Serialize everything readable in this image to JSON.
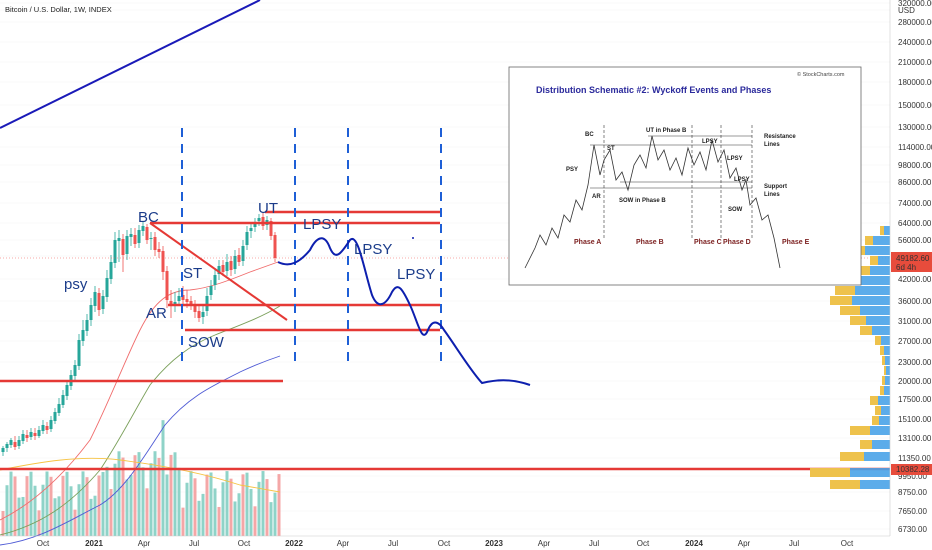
{
  "header": {
    "symbol_title": "Bitcoin / U.S. Dollar, 1W, INDEX"
  },
  "colors": {
    "bull": "#26a69a",
    "bear": "#ef5350",
    "support": "#e53935",
    "wave": "#0d1fae",
    "phase_line": "#1e5fd6",
    "trend_line": "#1a1ab8",
    "ema_red": "#f06c6c",
    "ema_green": "#7ba05b",
    "ema_blue": "#4f5bd5",
    "vp_up": "#f6c343",
    "vp_down": "#4aa3e8",
    "price_badge": "#e74c3c",
    "inset_title": "#2b2a9c",
    "inset_phase": "#7b1e1e"
  },
  "chart_data": {
    "type": "candlestick",
    "y_axis_ticks": [
      "320000.00",
      "USD",
      "280000.00",
      "240000.00",
      "210000.00",
      "180000.00",
      "150000.00",
      "130000.00",
      "114000.00",
      "98000.00",
      "86000.00",
      "74000.00",
      "64000.00",
      "56000.00",
      "49000.00",
      "42000.00",
      "36000.00",
      "31000.00",
      "27000.00",
      "23000.00",
      "20000.00",
      "17500.00",
      "15100.00",
      "13100.00",
      "11350.00",
      "9950.00",
      "8750.00",
      "7650.00",
      "6730.00"
    ],
    "x_axis_ticks": [
      "Oct",
      "2021",
      "Apr",
      "Jul",
      "Oct",
      "2022",
      "Apr",
      "Jul",
      "Oct",
      "2023",
      "Apr",
      "Jul",
      "Oct",
      "2024",
      "Apr",
      "Jul",
      "Oct"
    ],
    "current_price": {
      "value": "49182.60",
      "countdown": "6d 4h"
    },
    "support_level_badge": "10382.28",
    "annotations": [
      "psy",
      "BC",
      "AR",
      "ST",
      "SOW",
      "UT",
      "LPSY",
      "LPSY",
      "LPSY"
    ]
  },
  "inset": {
    "title": "Distribution Schematic #2: Wyckoff Events and Phases",
    "credit": "© StockCharts.com",
    "labels": [
      "BC",
      "ST",
      "PSY",
      "AR",
      "UT in Phase B",
      "LPSY",
      "LPSY",
      "LPSY",
      "SOW in Phase B",
      "SOW",
      "Resistance",
      "Lines",
      "Support",
      "Lines"
    ],
    "phases": [
      "Phase A",
      "Phase B",
      "Phase C",
      "Phase D",
      "Phase E"
    ]
  }
}
